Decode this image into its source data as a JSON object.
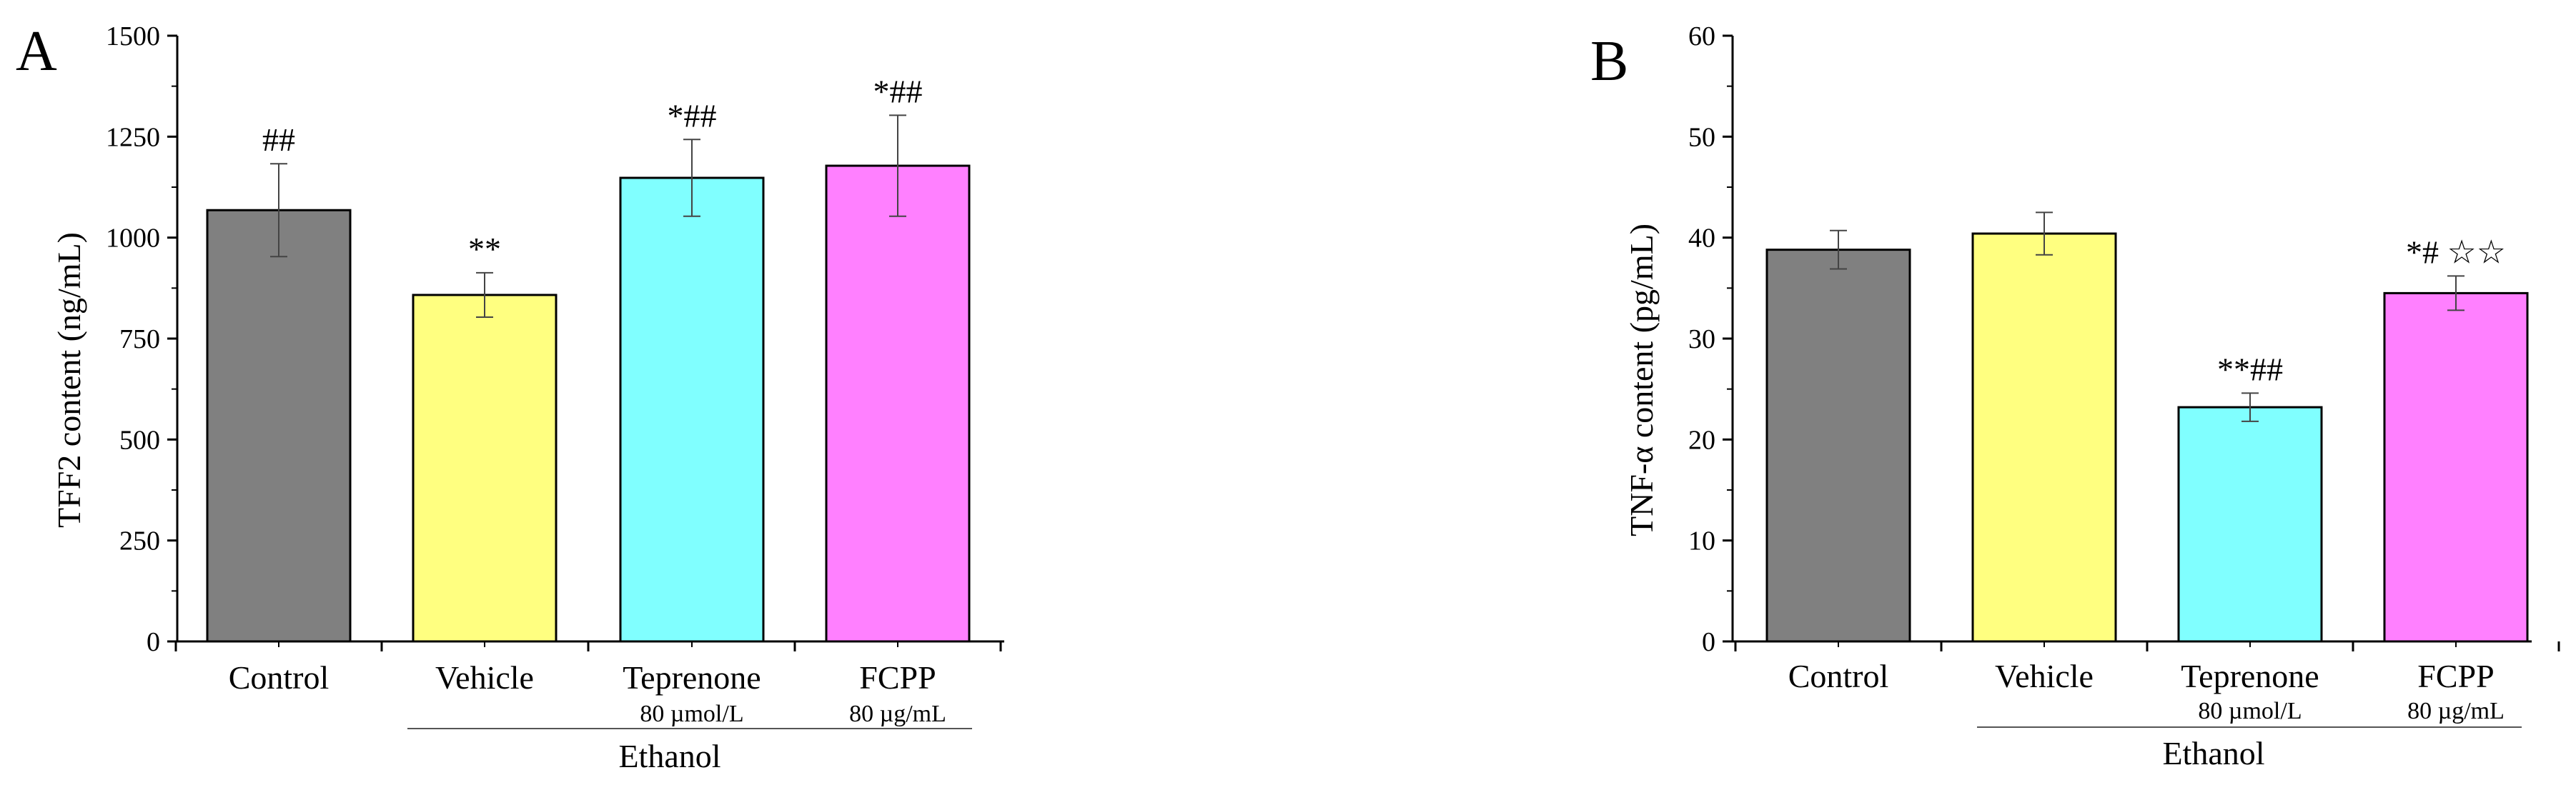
{
  "chart_data": [
    {
      "type": "bar",
      "panel_label": "A",
      "categories": [
        "Control",
        "Vehicle",
        "Teprenone",
        "FCPP"
      ],
      "sublabels": [
        "",
        "",
        "80 µmol/L",
        "80 µg/mL"
      ],
      "group_label": "Ethanol",
      "values": [
        1068,
        858,
        1148,
        1178
      ],
      "errors": [
        115,
        55,
        95,
        125
      ],
      "annotations": [
        "##",
        "**",
        "*##",
        "*##"
      ],
      "colors": [
        "#808080",
        "#ffff80",
        "#80ffff",
        "#ff80ff"
      ],
      "ylabel": "TFF2 content (ng/mL)",
      "ylim": [
        0,
        1500
      ],
      "yticks": [
        "0",
        "250",
        "500",
        "750",
        "1000",
        "1250",
        "1500"
      ],
      "grid": false
    },
    {
      "type": "bar",
      "panel_label": "B",
      "categories": [
        "Control",
        "Vehicle",
        "Teprenone",
        "FCPP"
      ],
      "sublabels": [
        "",
        "",
        "80 µmol/L",
        "80 µg/mL"
      ],
      "group_label": "Ethanol",
      "values": [
        38.8,
        40.4,
        23.2,
        34.5
      ],
      "errors": [
        1.9,
        2.1,
        1.4,
        1.7
      ],
      "annotations": [
        "",
        "",
        "**##",
        "*# ☆☆"
      ],
      "colors": [
        "#808080",
        "#ffff80",
        "#80ffff",
        "#ff80ff"
      ],
      "ylabel": "TNF-α content (pg/mL)",
      "ylim": [
        0,
        60
      ],
      "yticks": [
        "0",
        "10",
        "20",
        "30",
        "40",
        "50",
        "60"
      ],
      "grid": false
    }
  ]
}
